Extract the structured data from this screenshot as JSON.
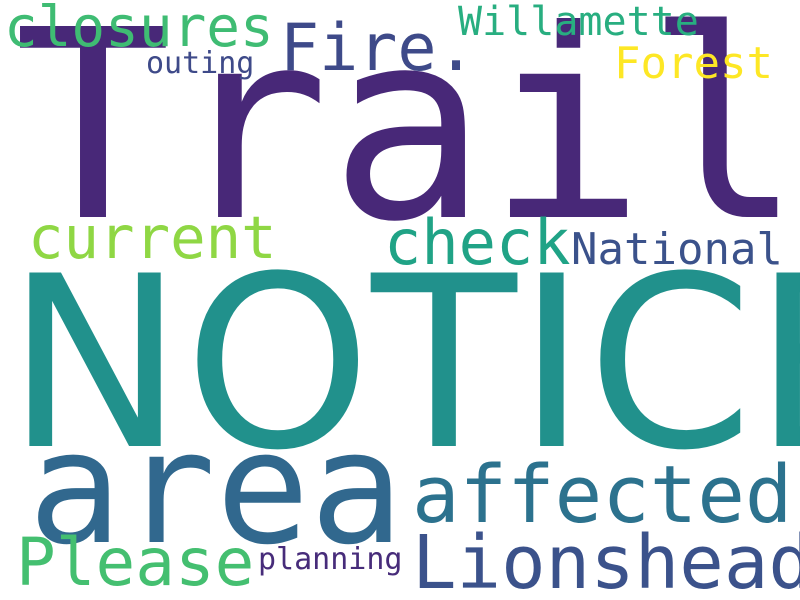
{
  "words": [
    {
      "key": "trails",
      "text": "Trails",
      "color": "#482878"
    },
    {
      "key": "notice",
      "text": "NOTICE",
      "color": "#21918c"
    },
    {
      "key": "area",
      "text": "area",
      "color": "#31688e"
    },
    {
      "key": "affected",
      "text": "affected",
      "color": "#2c728e"
    },
    {
      "key": "lionshead",
      "text": "Lionshead",
      "color": "#3b528b"
    },
    {
      "key": "please",
      "text": "Please",
      "color": "#44bf70"
    },
    {
      "key": "current",
      "text": "current",
      "color": "#8fd744"
    },
    {
      "key": "check",
      "text": "check",
      "color": "#20a386"
    },
    {
      "key": "national",
      "text": "National",
      "color": "#3b528b"
    },
    {
      "key": "closures",
      "text": "closures",
      "color": "#3fbc73"
    },
    {
      "key": "fire",
      "text": "Fire.",
      "color": "#3e4a89"
    },
    {
      "key": "willamette",
      "text": "Willamette",
      "color": "#28ae80"
    },
    {
      "key": "forest",
      "text": "Forest",
      "color": "#fde725"
    },
    {
      "key": "outing",
      "text": "outing",
      "color": "#3e4a89"
    },
    {
      "key": "planning",
      "text": "planning",
      "color": "#472c7a"
    }
  ]
}
